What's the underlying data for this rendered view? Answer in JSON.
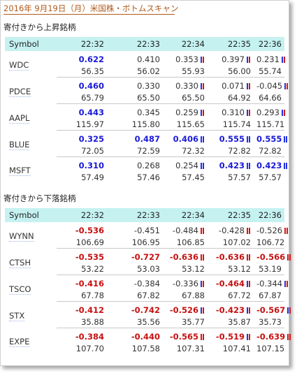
{
  "title": "2016年 9月19日（月）米国株・ボトムスキャン",
  "sections": [
    {
      "heading": "寄付きから上昇銘柄",
      "header": [
        "Symbol",
        "22:32",
        "22:33",
        "22:34",
        "22:35",
        "22:36"
      ],
      "stocks": [
        {
          "symbol": "WDC",
          "changes": [
            {
              "text": "0.622",
              "style": "pos",
              "marker": ""
            },
            {
              "text": "0.410",
              "style": "",
              "marker": ""
            },
            {
              "text": "0.353",
              "style": "",
              "marker": "mix"
            },
            {
              "text": "0.397",
              "style": "",
              "marker": "mix"
            },
            {
              "text": "0.231",
              "style": "",
              "marker": "mix"
            }
          ],
          "prices": [
            "56.35",
            "56.02",
            "55.93",
            "56.00",
            "55.74"
          ]
        },
        {
          "symbol": "PDCE",
          "changes": [
            {
              "text": "0.460",
              "style": "pos",
              "marker": ""
            },
            {
              "text": "0.330",
              "style": "",
              "marker": ""
            },
            {
              "text": "0.330",
              "style": "",
              "marker": "mix"
            },
            {
              "text": "0.071",
              "style": "",
              "marker": "mix"
            },
            {
              "text": "-0.045",
              "style": "",
              "marker": "mix"
            }
          ],
          "prices": [
            "65.79",
            "65.50",
            "65.50",
            "64.92",
            "64.66"
          ]
        },
        {
          "symbol": "AAPL",
          "changes": [
            {
              "text": "0.443",
              "style": "pos",
              "marker": ""
            },
            {
              "text": "0.345",
              "style": "",
              "marker": ""
            },
            {
              "text": "0.259",
              "style": "",
              "marker": "mix"
            },
            {
              "text": "0.310",
              "style": "",
              "marker": "mix"
            },
            {
              "text": "0.293",
              "style": "",
              "marker": "mix"
            }
          ],
          "prices": [
            "115.97",
            "115.80",
            "115.65",
            "115.74",
            "115.71"
          ]
        },
        {
          "symbol": "BLUE",
          "changes": [
            {
              "text": "0.325",
              "style": "pos",
              "marker": ""
            },
            {
              "text": "0.487",
              "style": "pos",
              "marker": ""
            },
            {
              "text": "0.406",
              "style": "pos",
              "marker": "blue"
            },
            {
              "text": "0.555",
              "style": "pos",
              "marker": "blue"
            },
            {
              "text": "0.555",
              "style": "pos",
              "marker": "blue"
            }
          ],
          "prices": [
            "72.05",
            "72.59",
            "72.32",
            "72.82",
            "72.82"
          ]
        },
        {
          "symbol": "MSFT",
          "changes": [
            {
              "text": "0.310",
              "style": "pos",
              "marker": ""
            },
            {
              "text": "0.268",
              "style": "",
              "marker": ""
            },
            {
              "text": "0.254",
              "style": "",
              "marker": "blue"
            },
            {
              "text": "0.423",
              "style": "pos",
              "marker": "blue"
            },
            {
              "text": "0.423",
              "style": "pos",
              "marker": "blue"
            }
          ],
          "prices": [
            "57.49",
            "57.46",
            "57.45",
            "57.57",
            "57.57"
          ]
        }
      ]
    },
    {
      "heading": "寄付きから下落銘柄",
      "header": [
        "Symbol",
        "22:32",
        "22:33",
        "22:34",
        "22:35",
        "22:36"
      ],
      "stocks": [
        {
          "symbol": "WYNN",
          "changes": [
            {
              "text": "-0.536",
              "style": "neg",
              "marker": ""
            },
            {
              "text": "-0.451",
              "style": "",
              "marker": ""
            },
            {
              "text": "-0.484",
              "style": "",
              "marker": "red"
            },
            {
              "text": "-0.428",
              "style": "",
              "marker": "red"
            },
            {
              "text": "-0.526",
              "style": "",
              "marker": "red"
            }
          ],
          "prices": [
            "106.69",
            "106.95",
            "106.85",
            "107.02",
            "106.72"
          ]
        },
        {
          "symbol": "CTSH",
          "changes": [
            {
              "text": "-0.535",
              "style": "neg",
              "marker": ""
            },
            {
              "text": "-0.727",
              "style": "neg",
              "marker": ""
            },
            {
              "text": "-0.636",
              "style": "neg",
              "marker": "red"
            },
            {
              "text": "-0.636",
              "style": "neg",
              "marker": "red"
            },
            {
              "text": "-0.566",
              "style": "neg",
              "marker": "red"
            }
          ],
          "prices": [
            "53.22",
            "53.03",
            "53.12",
            "53.12",
            "53.19"
          ]
        },
        {
          "symbol": "TSCO",
          "changes": [
            {
              "text": "-0.416",
              "style": "neg",
              "marker": ""
            },
            {
              "text": "-0.384",
              "style": "",
              "marker": ""
            },
            {
              "text": "-0.336",
              "style": "",
              "marker": "mix"
            },
            {
              "text": "-0.464",
              "style": "neg",
              "marker": "mix"
            },
            {
              "text": "-0.344",
              "style": "",
              "marker": "mix"
            }
          ],
          "prices": [
            "67.78",
            "67.82",
            "67.88",
            "67.72",
            "67.87"
          ]
        },
        {
          "symbol": "STX",
          "changes": [
            {
              "text": "-0.412",
              "style": "neg",
              "marker": ""
            },
            {
              "text": "-0.742",
              "style": "neg",
              "marker": ""
            },
            {
              "text": "-0.526",
              "style": "neg",
              "marker": "mix"
            },
            {
              "text": "-0.423",
              "style": "neg",
              "marker": "mix"
            },
            {
              "text": "-0.567",
              "style": "neg",
              "marker": "mix"
            }
          ],
          "prices": [
            "35.88",
            "35.56",
            "35.77",
            "35.87",
            "35.73"
          ]
        },
        {
          "symbol": "EXPE",
          "changes": [
            {
              "text": "-0.384",
              "style": "neg",
              "marker": ""
            },
            {
              "text": "-0.440",
              "style": "neg",
              "marker": ""
            },
            {
              "text": "-0.565",
              "style": "neg",
              "marker": "red"
            },
            {
              "text": "-0.519",
              "style": "neg",
              "marker": "mix"
            },
            {
              "text": "-0.639",
              "style": "neg",
              "marker": "red"
            }
          ],
          "prices": [
            "107.70",
            "107.58",
            "107.31",
            "107.41",
            "107.15"
          ]
        }
      ]
    }
  ],
  "colors": {
    "header_bg": "#c5f1f1",
    "up_value": "#1a1ad8",
    "down_value": "#c81010",
    "title_text": "#b05a1a"
  },
  "icons": [
    "bar-marker-icon"
  ]
}
